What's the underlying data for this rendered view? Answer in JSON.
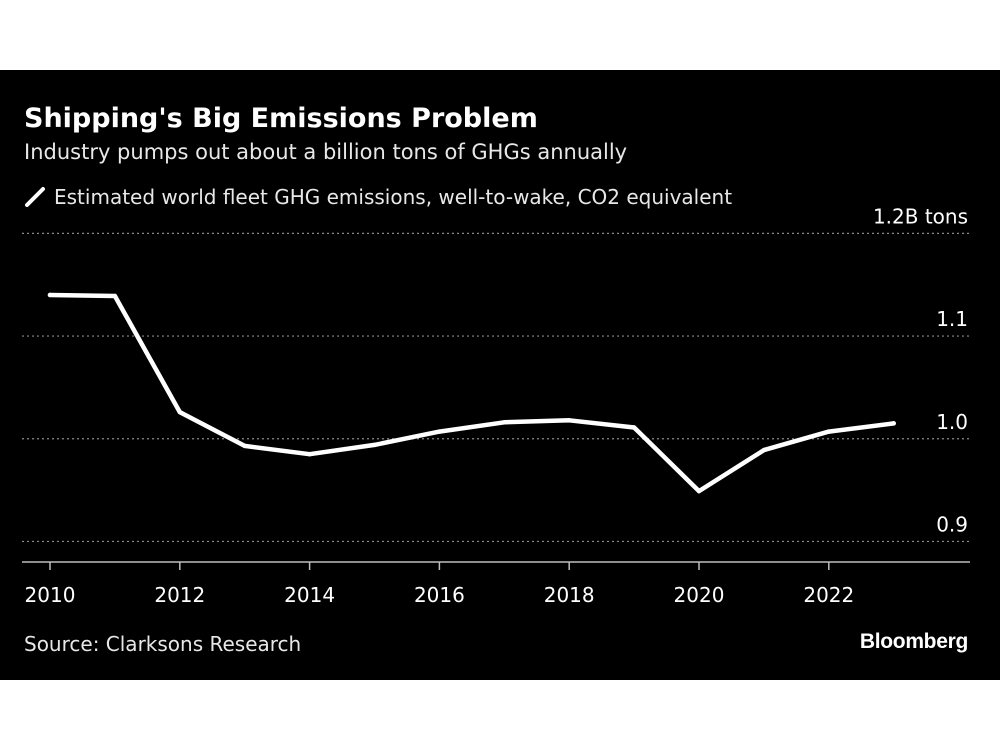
{
  "title": "Shipping's Big Emissions Problem",
  "subtitle": "Industry pumps out about a billion tons of GHGs annually",
  "source": "Source: Clarksons Research",
  "brand": "Bloomberg",
  "colors": {
    "background": "#000000",
    "line": "#ffffff",
    "grid": "#8a8a8a",
    "text": "#ffffff"
  },
  "chart_data": {
    "type": "line",
    "title": "Shipping's Big Emissions Problem",
    "subtitle": "Industry pumps out about a billion tons of GHGs annually",
    "x": [
      2010,
      2011,
      2012,
      2013,
      2014,
      2015,
      2016,
      2017,
      2018,
      2019,
      2020,
      2021,
      2022,
      2023
    ],
    "series": [
      {
        "name": "Estimated world fleet GHG emissions, well-to-wake, CO2 equivalent",
        "values": [
          1.14,
          1.139,
          1.026,
          0.993,
          0.985,
          0.994,
          1.007,
          1.016,
          1.018,
          1.011,
          0.949,
          0.989,
          1.007,
          1.015
        ]
      }
    ],
    "x_ticks": [
      "2010",
      "2012",
      "2014",
      "2016",
      "2018",
      "2020",
      "2022"
    ],
    "y_ticks": [
      "1.2B tons",
      "1.1",
      "1.0",
      "0.9"
    ],
    "ylim": [
      0.88,
      1.2
    ],
    "xlim": [
      2010,
      2024
    ],
    "grid": true,
    "legend_position": "top-left",
    "source": "Source: Clarksons Research"
  }
}
